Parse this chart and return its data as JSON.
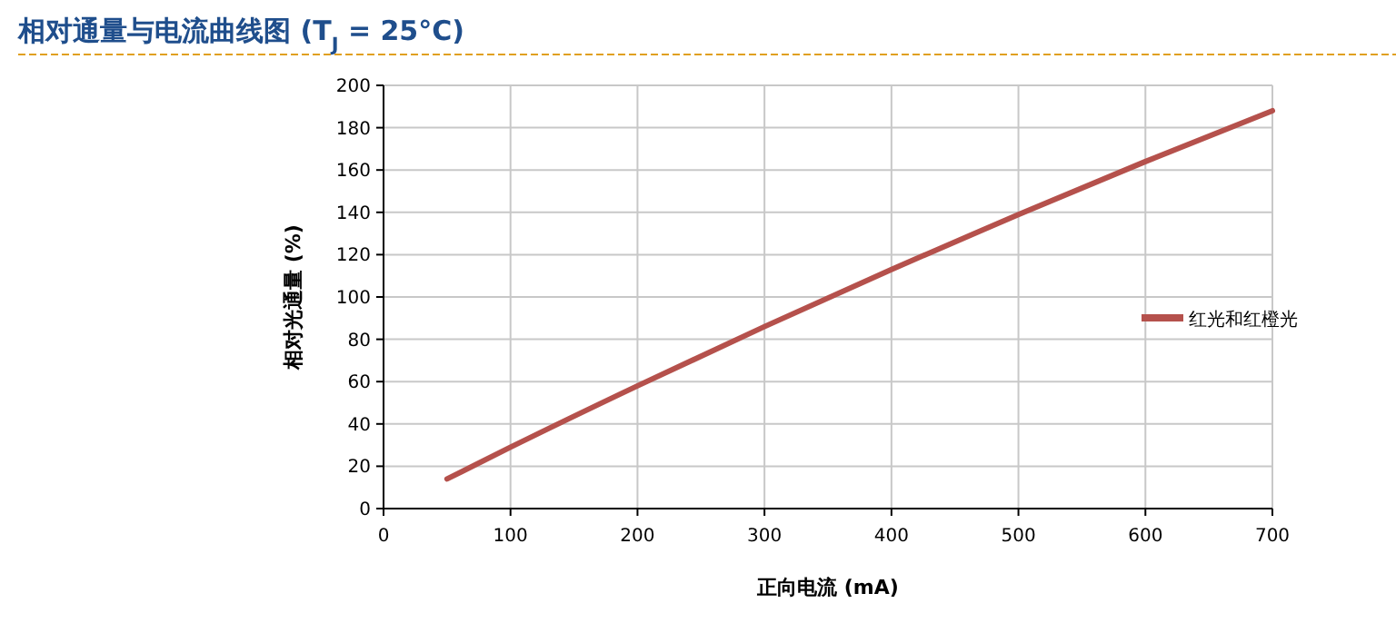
{
  "chart_data": {
    "type": "line",
    "title": "相对通量与电流曲线图 (T$_{J}$ = 25°C)",
    "xlabel": "正向电流 (mA)",
    "ylabel": "相对光通量 (%)",
    "x": [
      50,
      100,
      200,
      300,
      400,
      500,
      600,
      700
    ],
    "series": [
      {
        "name": "红光和红橙光",
        "color": "#b5514c",
        "values": [
          14,
          29,
          58,
          86,
          113,
          139,
          164,
          188
        ]
      }
    ],
    "xlim": [
      0,
      700
    ],
    "xticks": [
      0,
      100,
      200,
      300,
      400,
      500,
      600,
      700
    ],
    "ylim": [
      0,
      200
    ],
    "yticks": [
      0,
      20,
      40,
      60,
      80,
      100,
      120,
      140,
      160,
      180,
      200
    ],
    "grid": true,
    "legend": "right",
    "marker": "none",
    "line_style": "solid"
  }
}
